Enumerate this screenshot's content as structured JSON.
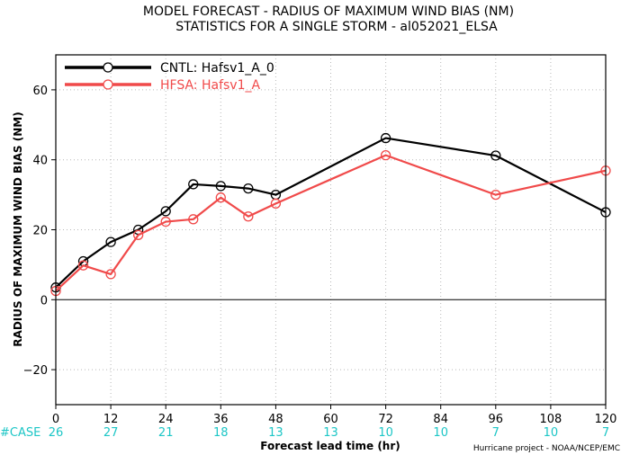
{
  "chart_data": {
    "type": "line",
    "title": "MODEL FORECAST - RADIUS OF MAXIMUM WIND BIAS (NM)",
    "subtitle": "STATISTICS FOR A SINGLE STORM - al052021_ELSA",
    "xlabel": "Forecast lead time (hr)",
    "ylabel": "RADIUS OF MAXIMUM WIND BIAS (NM)",
    "xlim": [
      0,
      120
    ],
    "ylim": [
      -30,
      70
    ],
    "xticks": [
      0,
      12,
      24,
      36,
      48,
      60,
      72,
      84,
      96,
      108,
      120
    ],
    "yticks": [
      -20,
      0,
      20,
      40,
      60
    ],
    "grid": true,
    "legend_position": "top-left",
    "case_label": "#CASE",
    "cases": [
      {
        "x": 0,
        "n": "26"
      },
      {
        "x": 12,
        "n": "27"
      },
      {
        "x": 24,
        "n": "21"
      },
      {
        "x": 36,
        "n": "18"
      },
      {
        "x": 48,
        "n": "13"
      },
      {
        "x": 60,
        "n": "13"
      },
      {
        "x": 72,
        "n": "10"
      },
      {
        "x": 84,
        "n": "10"
      },
      {
        "x": 96,
        "n": "7"
      },
      {
        "x": 108,
        "n": "10"
      },
      {
        "x": 120,
        "n": "7"
      }
    ],
    "credit": "Hurricane project - NOAA/NCEP/EMC",
    "series": [
      {
        "name": "CNTL: Hafsv1_A_0",
        "color": "#000000",
        "x": [
          0,
          6,
          12,
          18,
          24,
          30,
          36,
          42,
          48,
          72,
          96,
          120
        ],
        "y": [
          3.5,
          11,
          16.5,
          20,
          25.3,
          33,
          32.5,
          31.8,
          30,
          46.2,
          41.2,
          25
        ]
      },
      {
        "name": "HFSA: Hafsv1_A",
        "color": "#f04a4a",
        "x": [
          0,
          6,
          12,
          18,
          24,
          30,
          36,
          42,
          48,
          72,
          96,
          120
        ],
        "y": [
          2.5,
          9.8,
          7.3,
          18.5,
          22.3,
          23,
          29.2,
          23.8,
          27.5,
          41.3,
          30,
          36.9
        ]
      }
    ]
  }
}
